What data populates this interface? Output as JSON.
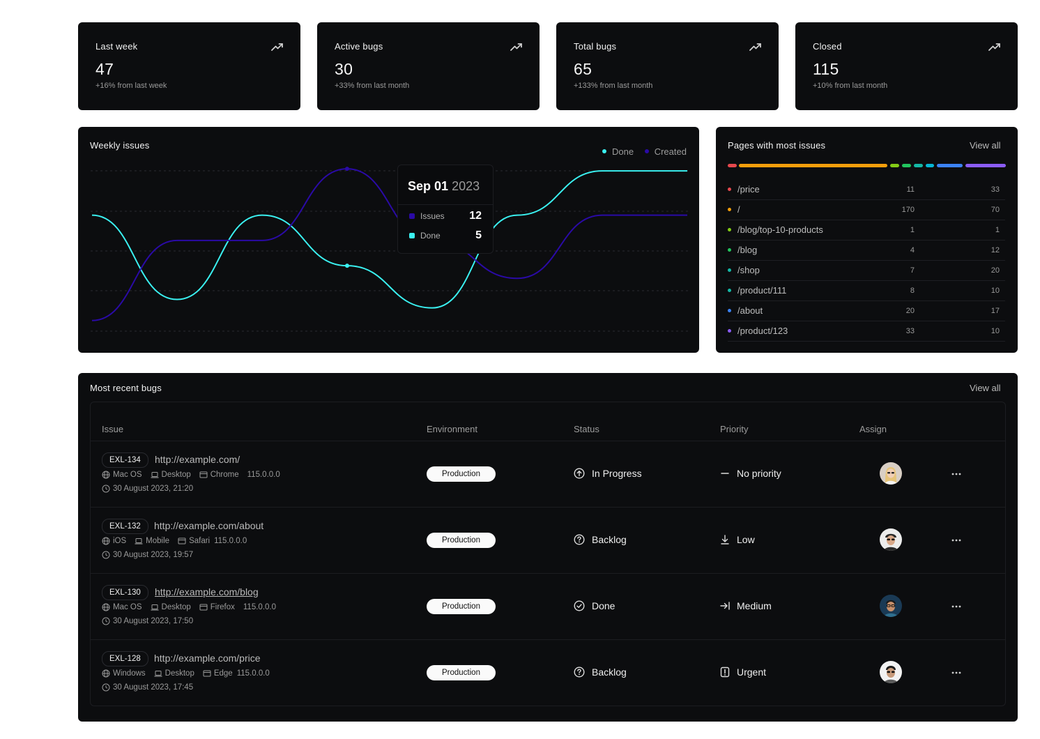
{
  "stats": [
    {
      "title": "Last week",
      "value": "47",
      "delta": "+16% from last week"
    },
    {
      "title": "Active bugs",
      "value": "30",
      "delta": "+33% from last month"
    },
    {
      "title": "Total bugs",
      "value": "65",
      "delta": "+133% from last month"
    },
    {
      "title": "Closed",
      "value": "115",
      "delta": "+10% from last month"
    }
  ],
  "weekly": {
    "title": "Weekly issues",
    "legend": {
      "done": "Done",
      "created": "Created"
    },
    "colors": {
      "done": "#3af0f0",
      "created": "#2a0aa6"
    },
    "tooltip": {
      "date": "Sep 01",
      "year": "2023",
      "issues_label": "Issues",
      "issues_value": "12",
      "done_label": "Done",
      "done_value": "5"
    }
  },
  "chart_data": {
    "type": "line",
    "title": "Weekly issues",
    "x": [
      0,
      1,
      2,
      3,
      4,
      5,
      6,
      7
    ],
    "series": [
      {
        "name": "Done",
        "values": [
          3,
          1,
          3,
          1.8,
          0.8,
          3,
          4.05,
          4.05
        ]
      },
      {
        "name": "Created",
        "values": [
          0.5,
          2.4,
          2.4,
          4.1,
          2.4,
          1.5,
          3,
          3
        ]
      }
    ],
    "grid": true,
    "legend": "top-right"
  },
  "pages": {
    "title": "Pages with most issues",
    "view_all": "View all",
    "bar_colors": [
      "#e5484d",
      "#f59e0b",
      "#84cc16",
      "#22c55e",
      "#14b8a6",
      "#06b6d4",
      "#3b82f6",
      "#8b5cf6"
    ],
    "rows": [
      {
        "path": "/price",
        "a": "11",
        "b": "33",
        "color": "#e5484d"
      },
      {
        "path": "/",
        "a": "170",
        "b": "70",
        "color": "#f59e0b"
      },
      {
        "path": "/blog/top-10-products",
        "a": "1",
        "b": "1",
        "color": "#84cc16"
      },
      {
        "path": "/blog",
        "a": "4",
        "b": "12",
        "color": "#22c55e"
      },
      {
        "path": "/shop",
        "a": "7",
        "b": "20",
        "color": "#14b8a6"
      },
      {
        "path": "/product/111",
        "a": "8",
        "b": "10",
        "color": "#14b8a6"
      },
      {
        "path": "/about",
        "a": "20",
        "b": "17",
        "color": "#3b82f6"
      },
      {
        "path": "/product/123",
        "a": "33",
        "b": "10",
        "color": "#8b5cf6"
      }
    ]
  },
  "bugs": {
    "title": "Most recent bugs",
    "view_all": "View all",
    "headers": {
      "issue": "Issue",
      "environment": "Environment",
      "status": "Status",
      "priority": "Priority",
      "assign": "Assign"
    },
    "rows": [
      {
        "id": "EXL-134",
        "url": "http://example.com/",
        "os": "Mac OS",
        "device": "Desktop",
        "browser": "Chrome",
        "version": "115.0.0.0",
        "date": "30 August 2023, 21:20",
        "env": "Production",
        "status": "In Progress",
        "status_icon": "arrow-up-circle-icon",
        "priority": "No priority",
        "priority_icon": "dash-icon"
      },
      {
        "id": "EXL-132",
        "url": "http://example.com/about",
        "os": "iOS",
        "device": "Mobile",
        "browser": "Safari",
        "version": "115.0.0.0",
        "date": "30 August 2023, 19:57",
        "env": "Production",
        "status": "Backlog",
        "status_icon": "question-circle-icon",
        "priority": "Low",
        "priority_icon": "arrow-down-icon"
      },
      {
        "id": "EXL-130",
        "url": "http://example.com/blog",
        "os": "Mac OS",
        "device": "Desktop",
        "browser": "Firefox",
        "version": "115.0.0.0",
        "date": "30 August 2023, 17:50",
        "env": "Production",
        "status": "Done",
        "status_icon": "check-circle-icon",
        "priority": "Medium",
        "priority_icon": "arrow-right-bar-icon"
      },
      {
        "id": "EXL-128",
        "url": "http://example.com/price",
        "os": "Windows",
        "device": "Desktop",
        "browser": "Edge",
        "version": "115.0.0.0",
        "date": "30 August 2023, 17:45",
        "env": "Production",
        "status": "Backlog",
        "status_icon": "question-circle-icon",
        "priority": "Urgent",
        "priority_icon": "urgent-icon"
      }
    ]
  }
}
